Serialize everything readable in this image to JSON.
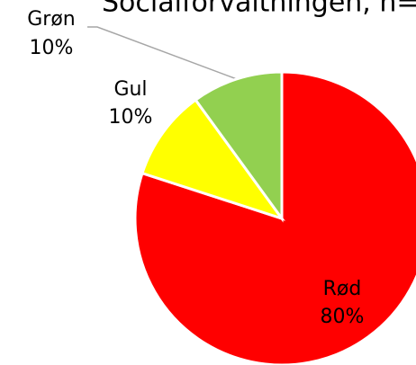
{
  "chart_data": {
    "type": "pie",
    "title": "Socialforvaltningen, n=",
    "categories": [
      "Rød",
      "Gul",
      "Grøn"
    ],
    "values": [
      80,
      10,
      10
    ],
    "value_labels": [
      "80%",
      "10%",
      "10%"
    ],
    "colors": [
      "#ff0000",
      "#ffff00",
      "#92d050"
    ]
  }
}
